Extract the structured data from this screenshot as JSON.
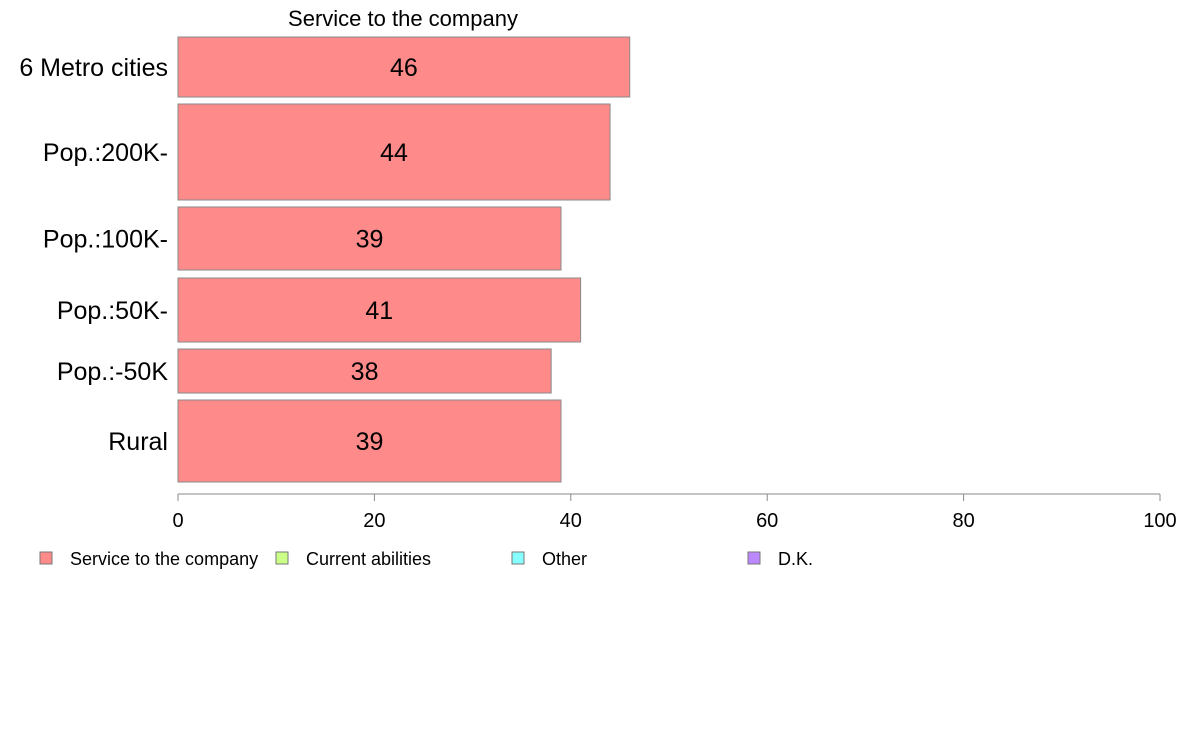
{
  "chart_data": {
    "type": "bar",
    "orientation": "horizontal",
    "title": "Service to the company",
    "categories": [
      "6 Metro cities",
      "Pop.:200K-",
      "Pop.:100K-",
      "Pop.:50K-",
      "Pop.:-50K",
      "Rural"
    ],
    "series": [
      {
        "name": "Service to the company",
        "color": "#ff8a8a",
        "values": [
          46,
          44,
          39,
          41,
          38,
          39
        ]
      }
    ],
    "value_labels": [
      "46",
      "44",
      "39",
      "41",
      "38",
      "39"
    ],
    "xlim": [
      0,
      100
    ],
    "xticks": [
      0,
      20,
      40,
      60,
      80,
      100
    ],
    "xtick_labels": [
      "0",
      "20",
      "40",
      "60",
      "80",
      "100"
    ],
    "grid": false,
    "legend_position": "bottom",
    "legend": [
      {
        "label": "Service to the company",
        "color": "#ff8a8a"
      },
      {
        "label": "Current abilities",
        "color": "#ccff88"
      },
      {
        "label": "Other",
        "color": "#88ffff"
      },
      {
        "label": "D.K.",
        "color": "#bb88ff"
      }
    ]
  }
}
